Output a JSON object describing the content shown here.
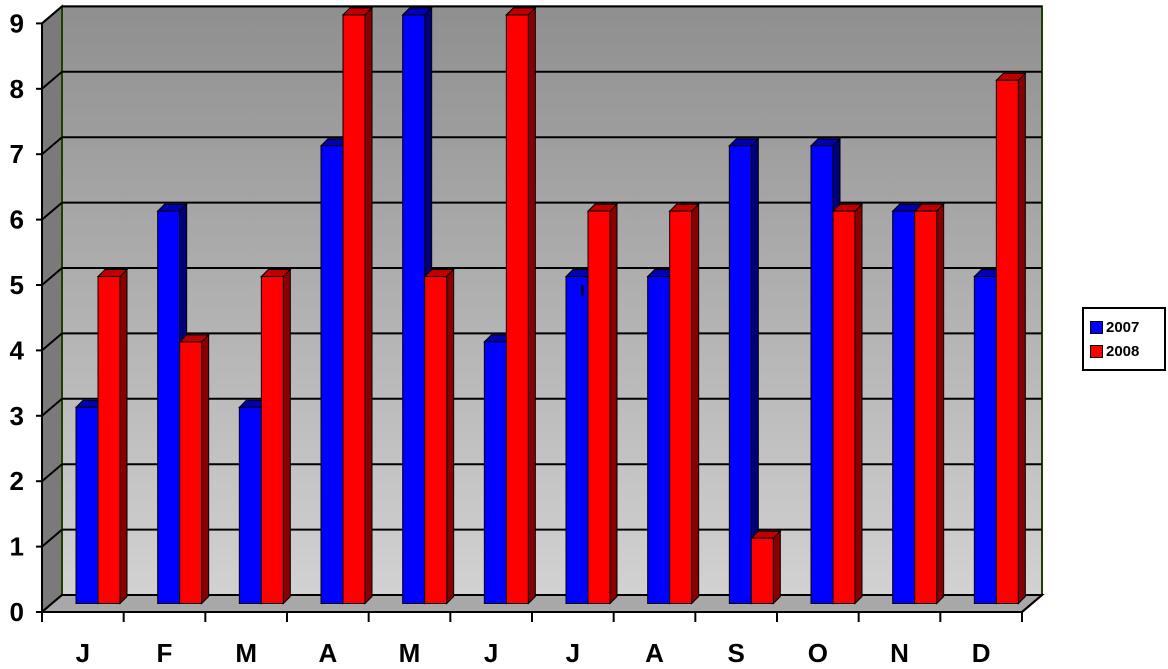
{
  "chart_data": {
    "type": "bar",
    "categories": [
      "J",
      "F",
      "M",
      "A",
      "M",
      "J",
      "J",
      "A",
      "S",
      "O",
      "N",
      "D"
    ],
    "series": [
      {
        "name": "2007",
        "color": "#0000ff",
        "values": [
          3,
          6,
          3,
          7,
          9,
          4,
          5,
          5,
          7,
          7,
          6,
          5
        ]
      },
      {
        "name": "2008",
        "color": "#ff0000",
        "values": [
          5,
          4,
          5,
          9,
          5,
          9,
          6,
          6,
          1,
          6,
          6,
          8
        ]
      }
    ],
    "y_ticks": [
      "0",
      "1",
      "2",
      "3",
      "4",
      "5",
      "6",
      "7",
      "8",
      "9"
    ],
    "ylim": [
      0,
      9
    ],
    "grid": true,
    "legend_position": "right",
    "annotation": "I",
    "title": "",
    "xlabel": "",
    "ylabel": ""
  }
}
